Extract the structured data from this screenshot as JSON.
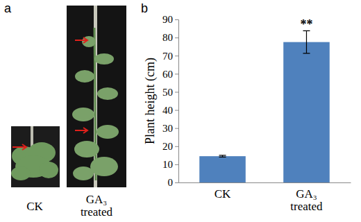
{
  "figure": {
    "panel_labels": [
      "a",
      "b"
    ],
    "photo_labels": [
      "CK",
      "GA₃ treated"
    ]
  },
  "chart_data": {
    "type": "bar",
    "y_label": "Plant height (cm)",
    "categories": [
      "CK",
      "GA₃ treated"
    ],
    "values": [
      14.5,
      77.5
    ],
    "errors": [
      0.5,
      6.2
    ],
    "color": "#4f81bd",
    "ylim": [
      0,
      90
    ],
    "yticks": [
      0,
      10,
      20,
      30,
      40,
      50,
      60,
      70,
      80,
      90
    ],
    "annotations": [
      {
        "category": "GA₃ treated",
        "text": "**"
      }
    ]
  }
}
